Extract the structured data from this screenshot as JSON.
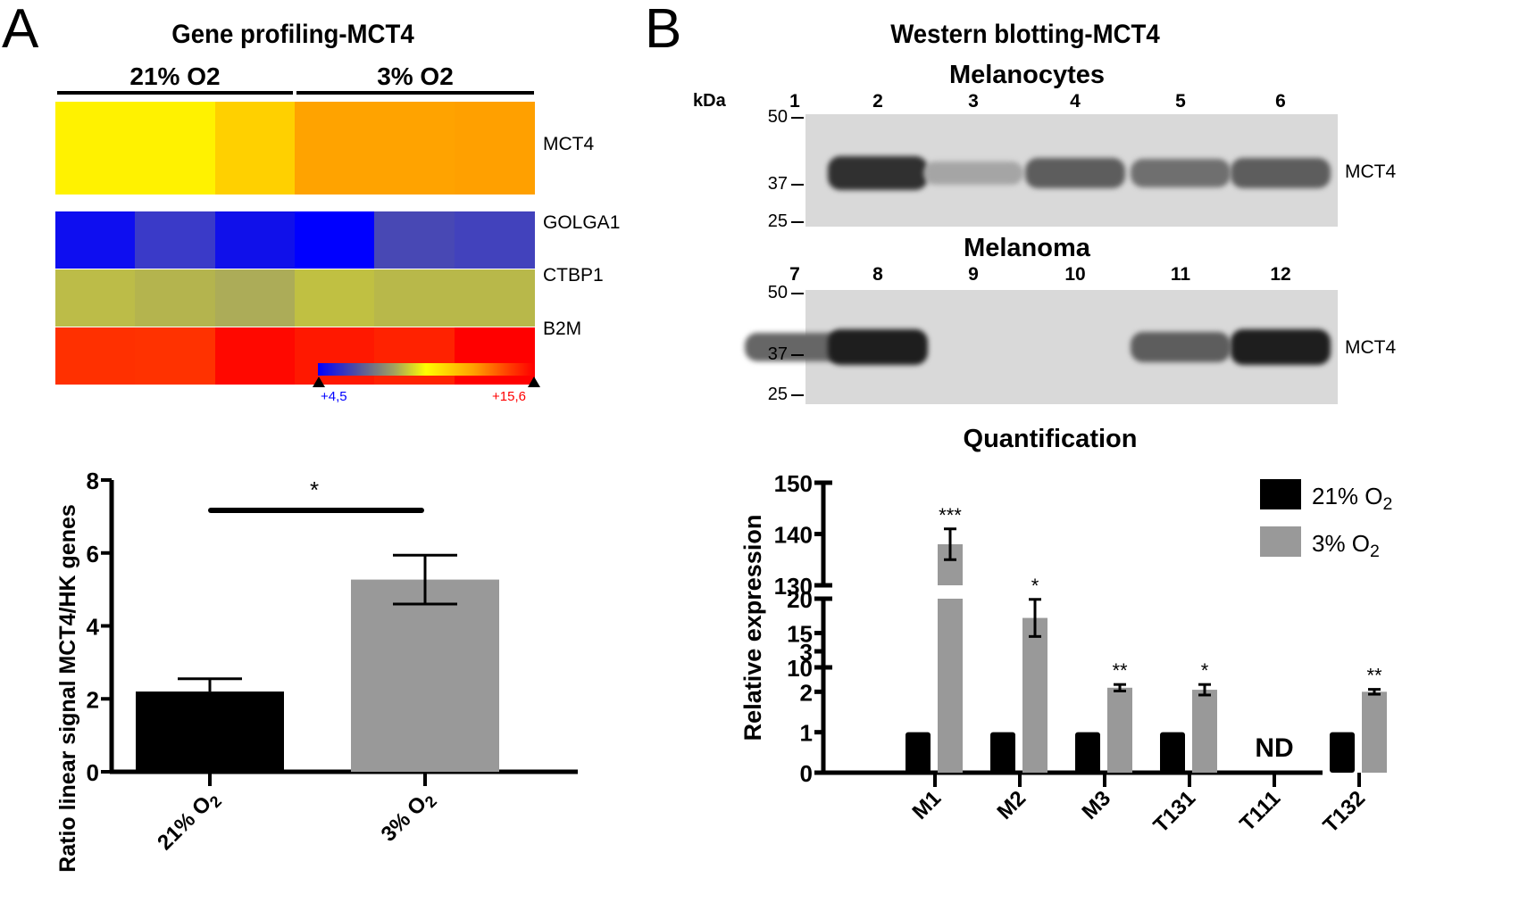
{
  "panel_a": {
    "letter": "A",
    "title": "Gene profiling-MCT4",
    "group_labels": [
      "21% O2",
      "3% O2"
    ],
    "heatmap": {
      "genes": [
        "MCT4",
        "GOLGA1",
        "CTBP1",
        "B2M"
      ],
      "colors": [
        [
          "#fff200",
          "#fff200",
          "#ffd000",
          "#ffa300",
          "#ffa300",
          "#ffa000"
        ],
        [
          "#0e0ef0",
          "#3a3ac8",
          "#1010ea",
          "#0000ff",
          "#4848b4",
          "#4242bc"
        ],
        [
          "#bcbc48",
          "#b4b44e",
          "#acac58",
          "#c0c042",
          "#b8b84a",
          "#b8b84a"
        ],
        [
          "#ff3000",
          "#ff3200",
          "#ff0800",
          "#ff1800",
          "#ff2200",
          "#ff0000"
        ]
      ],
      "colorbar": {
        "min_label": "+4,5",
        "max_label": "+15,6",
        "min_color": "#0000ff",
        "max_color": "#ff0000"
      }
    }
  },
  "panel_b": {
    "letter": "B",
    "title": "Western blotting-MCT4",
    "blots": [
      {
        "title": "Melanocytes",
        "lanes": [
          "1",
          "2",
          "3",
          "4",
          "5",
          "6"
        ],
        "band_intensity": [
          0.0,
          0.9,
          0.25,
          0.65,
          0.55,
          0.65
        ],
        "band_label": "MCT4"
      },
      {
        "title": "Melanoma",
        "lanes": [
          "7",
          "8",
          "9",
          "10",
          "11",
          "12"
        ],
        "band_intensity": [
          0.6,
          1.0,
          0.0,
          0.0,
          0.65,
          1.0
        ],
        "band_label": "MCT4"
      }
    ],
    "kda_label": "kDa",
    "kda_markers": [
      "50",
      "37",
      "25"
    ],
    "quant_title": "Quantification"
  },
  "chart_data": [
    {
      "type": "bar",
      "title": "",
      "categories": [
        "21% O2",
        "3% O2"
      ],
      "values": [
        2.2,
        5.27
      ],
      "errors": [
        0.35,
        0.67
      ],
      "colors": [
        "#000000",
        "#999999"
      ],
      "xlabel": "",
      "ylabel": "Ratio linear signal MCT4/HK genes",
      "ylim": [
        0,
        8
      ],
      "yticks": [
        "0",
        "2",
        "4",
        "6",
        "8"
      ],
      "significance": {
        "label": "*",
        "between": [
          "21% O2",
          "3% O2"
        ]
      },
      "grid": false
    },
    {
      "type": "bar",
      "title": "Quantification",
      "categories": [
        "M1",
        "M2",
        "M3",
        "T131",
        "T111",
        "T132"
      ],
      "series": [
        {
          "name": "21% O2",
          "color": "#000000",
          "values": [
            1,
            1,
            1,
            1,
            null,
            1
          ]
        },
        {
          "name": "3% O2",
          "color": "#999999",
          "values": [
            138,
            17.2,
            2.1,
            2.05,
            null,
            2.0
          ],
          "errors": [
            3,
            2.7,
            0.08,
            0.13,
            null,
            0.06
          ]
        }
      ],
      "annotations": [
        "***",
        "*",
        "**",
        "*",
        "ND",
        "**"
      ],
      "ylabel": "Relative expression",
      "y_segments": [
        {
          "range": [
            0,
            3
          ],
          "ticks": [
            "0",
            "1",
            "2",
            "3"
          ]
        },
        {
          "range": [
            10,
            20
          ],
          "ticks": [
            "10",
            "15",
            "20"
          ]
        },
        {
          "range": [
            130,
            150
          ],
          "ticks": [
            "130",
            "140",
            "150"
          ]
        }
      ],
      "legend": {
        "position": "top-right",
        "entries": [
          "21% O2",
          "3% O2"
        ]
      },
      "grid": false
    }
  ]
}
